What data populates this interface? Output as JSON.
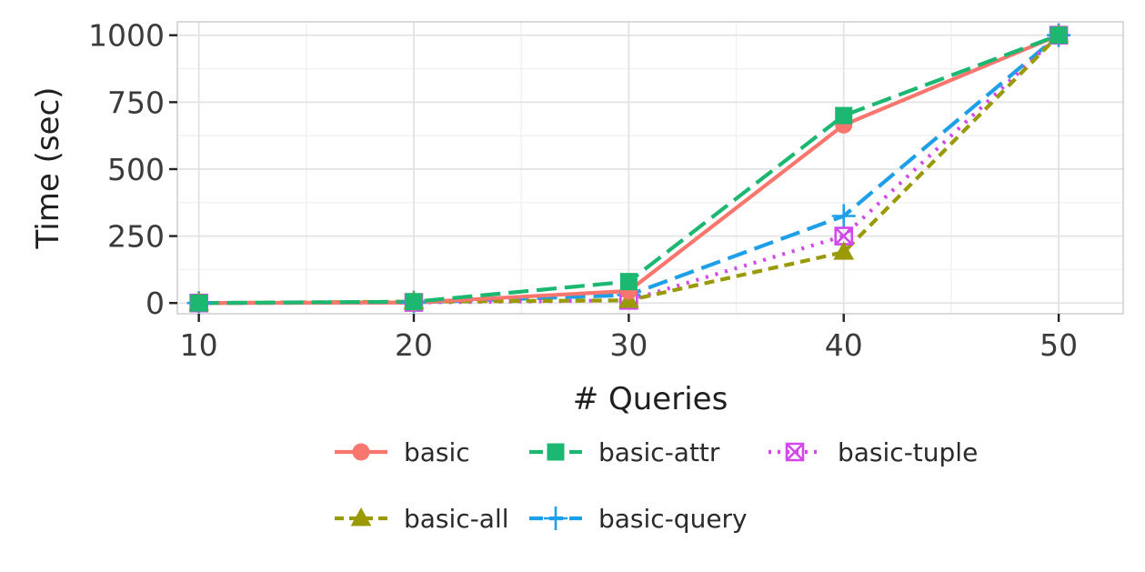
{
  "chart_data": {
    "type": "line",
    "title": "",
    "xlabel": "# Queries",
    "ylabel": "Time (sec)",
    "x": [
      10,
      20,
      30,
      40,
      50
    ],
    "xlim": [
      9,
      53
    ],
    "ylim": [
      -40,
      1050
    ],
    "x_ticks": [
      10,
      20,
      30,
      40,
      50
    ],
    "y_ticks": [
      0,
      250,
      500,
      750,
      1000
    ],
    "grid": true,
    "legend_position": "bottom",
    "series": [
      {
        "name": "basic",
        "values": [
          0,
          2,
          45,
          665,
          1000
        ],
        "color": "#F8766D",
        "dash": "solid",
        "marker": "circle"
      },
      {
        "name": "basic-attr",
        "values": [
          0,
          5,
          80,
          700,
          1000
        ],
        "color": "#1CB770",
        "dash": "longdash",
        "marker": "square"
      },
      {
        "name": "basic-tuple",
        "values": [
          0,
          2,
          10,
          250,
          1000
        ],
        "color": "#D348EA",
        "dash": "dotted",
        "marker": "boxcross"
      },
      {
        "name": "basic-all",
        "values": [
          0,
          5,
          10,
          190,
          1000
        ],
        "color": "#999A04",
        "dash": "dashed",
        "marker": "triangle"
      },
      {
        "name": "basic-query",
        "values": [
          0,
          2,
          30,
          325,
          1000
        ],
        "color": "#1E9FE8",
        "dash": "longdash",
        "marker": "plus"
      }
    ]
  }
}
